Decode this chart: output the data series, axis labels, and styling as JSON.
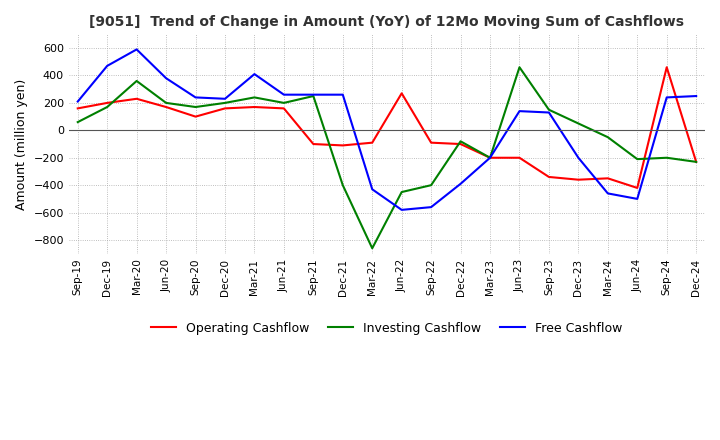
{
  "title": "[9051]  Trend of Change in Amount (YoY) of 12Mo Moving Sum of Cashflows",
  "ylabel": "Amount (million yen)",
  "xlabels": [
    "Sep-19",
    "Dec-19",
    "Mar-20",
    "Jun-20",
    "Sep-20",
    "Dec-20",
    "Mar-21",
    "Jun-21",
    "Sep-21",
    "Dec-21",
    "Mar-22",
    "Jun-22",
    "Sep-22",
    "Dec-22",
    "Mar-23",
    "Jun-23",
    "Sep-23",
    "Dec-23",
    "Mar-24",
    "Jun-24",
    "Sep-24",
    "Dec-24"
  ],
  "operating": [
    160,
    200,
    230,
    170,
    100,
    160,
    170,
    160,
    -100,
    -110,
    -90,
    270,
    -90,
    -100,
    -200,
    -200,
    -340,
    -360,
    -350,
    -420,
    460,
    -230
  ],
  "investing": [
    60,
    170,
    360,
    200,
    170,
    200,
    240,
    200,
    250,
    -400,
    -860,
    -450,
    -400,
    -80,
    -200,
    460,
    150,
    50,
    -50,
    -210,
    -200,
    -230
  ],
  "free": [
    210,
    470,
    590,
    380,
    240,
    230,
    410,
    260,
    260,
    260,
    -430,
    -580,
    -560,
    -390,
    -200,
    140,
    130,
    -200,
    -460,
    -500,
    240,
    250
  ],
  "ylim": [
    -900,
    700
  ],
  "yticks": [
    -800,
    -600,
    -400,
    -200,
    0,
    200,
    400,
    600
  ],
  "operating_color": "#ff0000",
  "investing_color": "#008000",
  "free_color": "#0000ff",
  "bg_color": "#ffffff",
  "grid_color": "#aaaaaa"
}
